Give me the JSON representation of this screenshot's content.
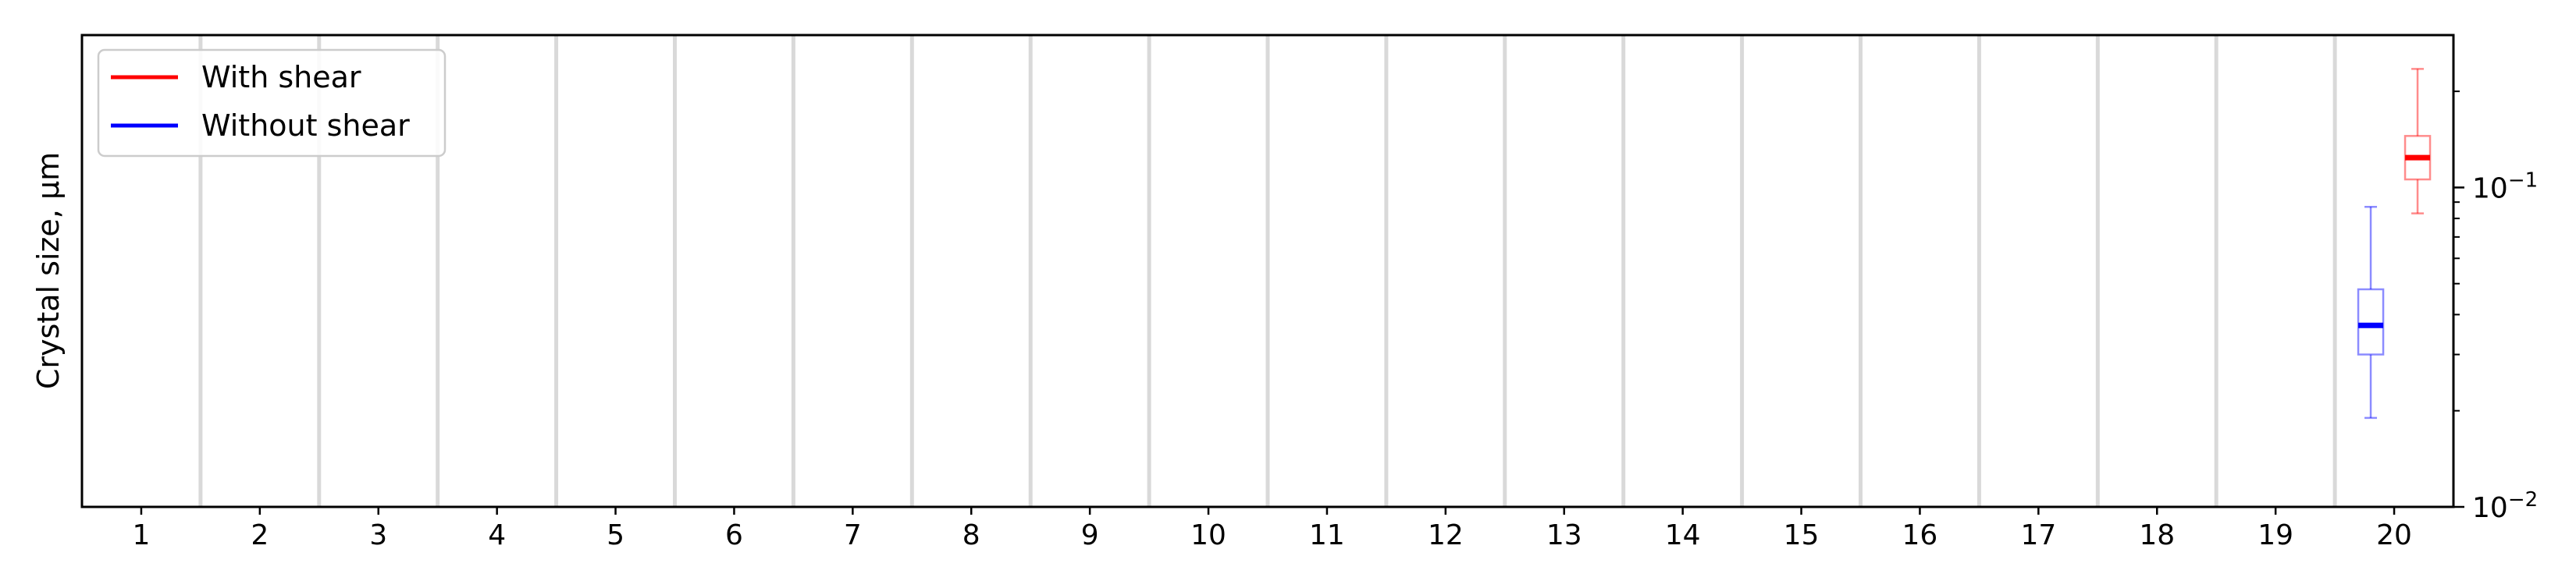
{
  "chart_data": {
    "type": "box",
    "title": "",
    "xlabel": "",
    "ylabel": "Crystal size, µm",
    "y_scale": "log",
    "ylim": [
      0.01,
      0.3
    ],
    "y_axis_position": "right",
    "y_ticks": [
      {
        "value": 0.1,
        "base": "10",
        "exp": "−1"
      },
      {
        "value": 0.01,
        "base": "10",
        "exp": "−2"
      }
    ],
    "categories": [
      "1",
      "2",
      "3",
      "4",
      "5",
      "6",
      "7",
      "8",
      "9",
      "10",
      "11",
      "12",
      "13",
      "14",
      "15",
      "16",
      "17",
      "18",
      "19",
      "20"
    ],
    "grid": "vertical separators between categories",
    "legend": {
      "position": "top-left",
      "entries": [
        {
          "label": "With shear",
          "color": "#ff0000"
        },
        {
          "label": "Without shear",
          "color": "#0000ff"
        }
      ]
    },
    "series": [
      {
        "name": "With shear",
        "color": "#ff0000",
        "boxes": [
          {
            "category": "20",
            "whisker_low": 0.083,
            "q1": 0.106,
            "median": 0.124,
            "q3": 0.145,
            "whisker_high": 0.235
          }
        ]
      },
      {
        "name": "Without shear",
        "color": "#0000ff",
        "boxes": [
          {
            "category": "20",
            "whisker_low": 0.019,
            "q1": 0.03,
            "median": 0.037,
            "q3": 0.048,
            "whisker_high": 0.087
          }
        ]
      }
    ]
  }
}
